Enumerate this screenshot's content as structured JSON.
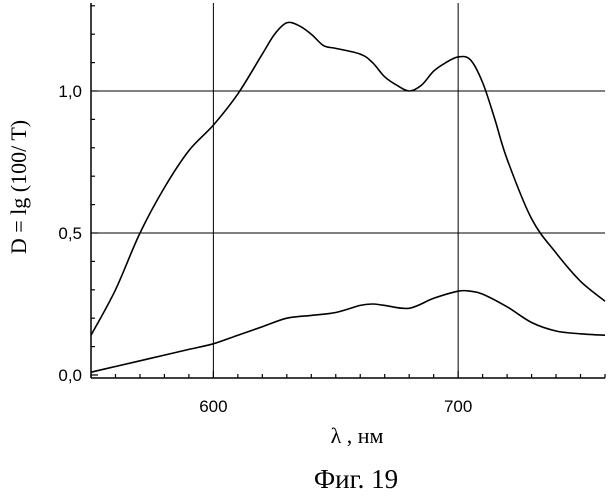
{
  "chart_data": {
    "type": "line",
    "xlabel": "λ , нм",
    "ylabel": "D = lg (100/ T)",
    "caption": "Фиг. 19",
    "xlim": [
      550,
      760
    ],
    "ylim": [
      0,
      1.3
    ],
    "x_ticks": [
      {
        "value": 600,
        "label": "600"
      },
      {
        "value": 700,
        "label": "700"
      }
    ],
    "y_ticks": [
      {
        "value": 0.0,
        "label": "0,0"
      },
      {
        "value": 0.5,
        "label": "0,5"
      },
      {
        "value": 1.0,
        "label": "1,0"
      }
    ],
    "grid": true,
    "series": [
      {
        "x": [
          550,
          560,
          570,
          580,
          590,
          600,
          610,
          620,
          625,
          630,
          635,
          640,
          645,
          650,
          660,
          665,
          670,
          675,
          680,
          685,
          690,
          695,
          700,
          705,
          710,
          715,
          720,
          730,
          740,
          750,
          760
        ],
        "values": [
          0.14,
          0.3,
          0.5,
          0.66,
          0.79,
          0.88,
          0.99,
          1.13,
          1.2,
          1.24,
          1.23,
          1.2,
          1.16,
          1.15,
          1.13,
          1.1,
          1.05,
          1.02,
          1.0,
          1.02,
          1.07,
          1.1,
          1.12,
          1.11,
          1.03,
          0.9,
          0.76,
          0.55,
          0.43,
          0.33,
          0.26
        ]
      },
      {
        "x": [
          550,
          560,
          570,
          580,
          590,
          600,
          610,
          620,
          630,
          640,
          650,
          660,
          665,
          670,
          680,
          690,
          700,
          705,
          710,
          720,
          730,
          740,
          750,
          760
        ],
        "values": [
          0.01,
          0.03,
          0.05,
          0.07,
          0.09,
          0.11,
          0.14,
          0.17,
          0.2,
          0.21,
          0.22,
          0.245,
          0.25,
          0.245,
          0.235,
          0.27,
          0.295,
          0.295,
          0.285,
          0.24,
          0.185,
          0.155,
          0.145,
          0.14
        ]
      }
    ]
  }
}
